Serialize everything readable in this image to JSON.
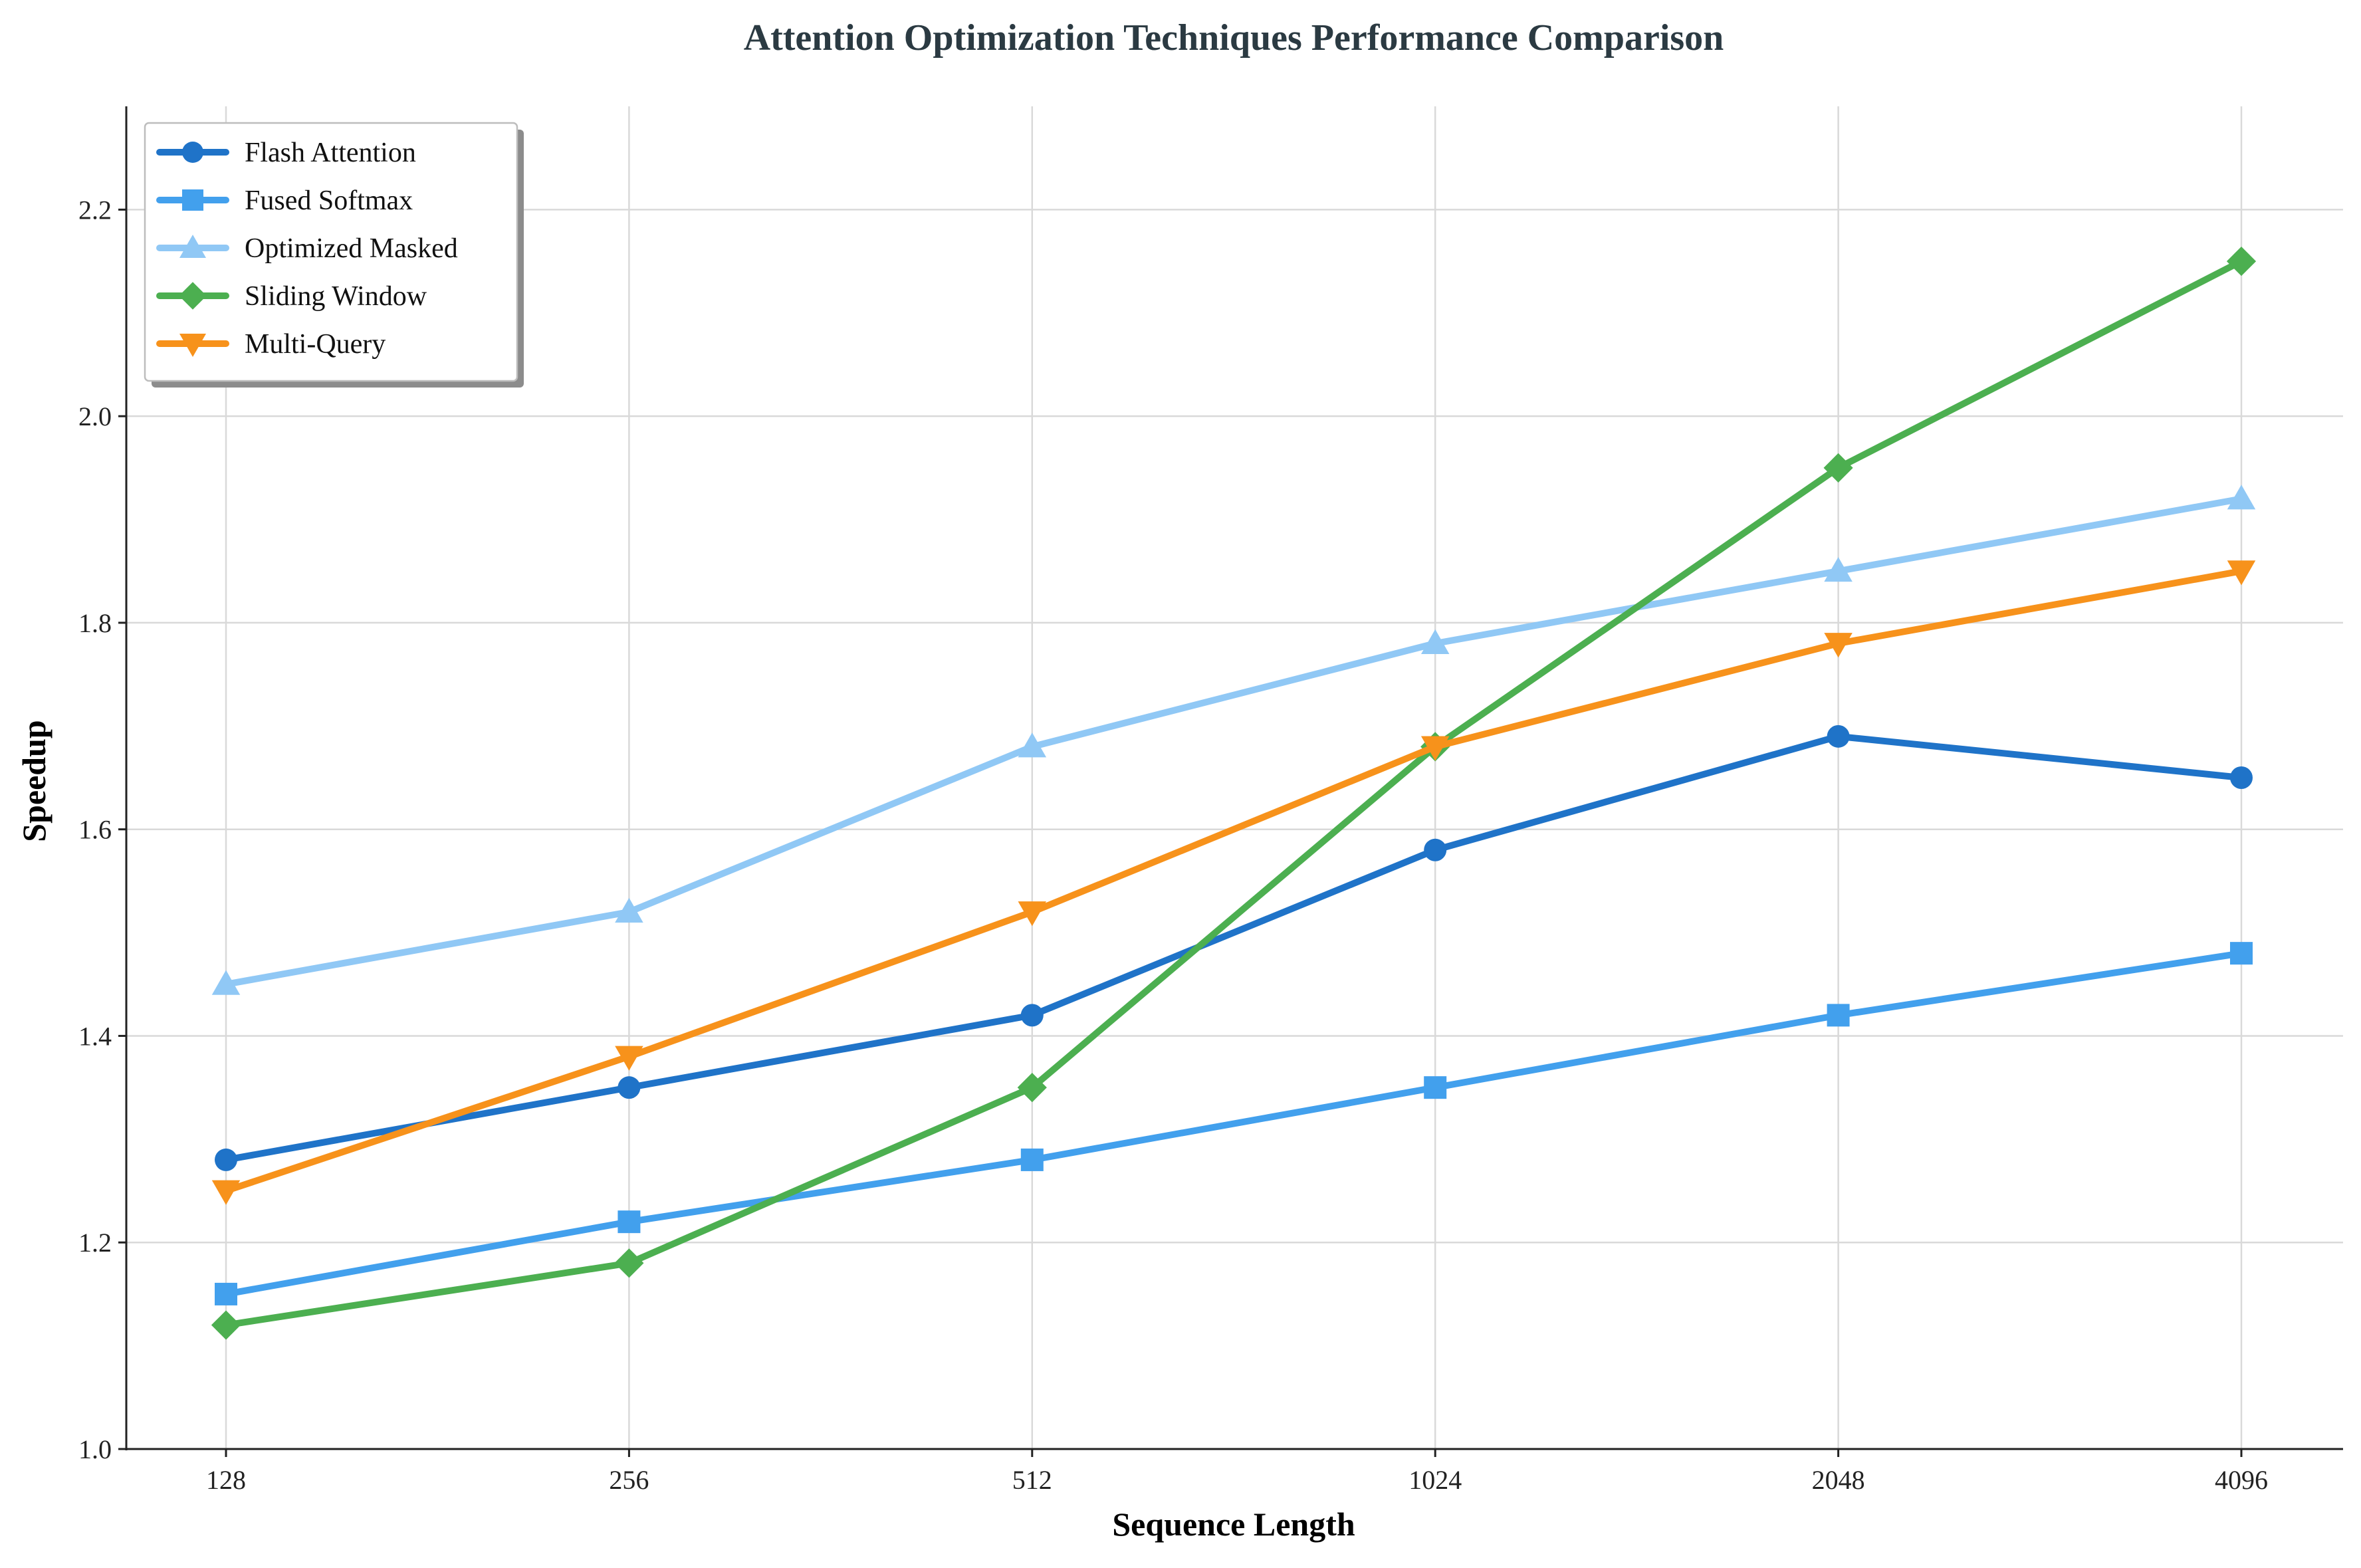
{
  "chart_data": {
    "type": "line",
    "title": "Attention Optimization Techniques Performance Comparison",
    "xlabel": "Sequence Length",
    "ylabel": "Speedup",
    "categories": [
      "128",
      "256",
      "512",
      "1024",
      "2048",
      "4096"
    ],
    "ylim": [
      1.0,
      2.3
    ],
    "yticks": [
      "1.0",
      "1.2",
      "1.4",
      "1.6",
      "1.8",
      "2.0",
      "2.2"
    ],
    "grid": true,
    "legend_position": "top-left",
    "baseline": 1.0,
    "series": [
      {
        "name": "Flash Attention",
        "color": "#1f73c8",
        "marker": "circle",
        "values": [
          1.28,
          1.35,
          1.42,
          1.58,
          1.69,
          1.65
        ]
      },
      {
        "name": "Fused Softmax",
        "color": "#42a0ed",
        "marker": "square",
        "values": [
          1.15,
          1.22,
          1.28,
          1.35,
          1.42,
          1.48
        ]
      },
      {
        "name": "Optimized Masked",
        "color": "#90c8f5",
        "marker": "triangle-up",
        "values": [
          1.45,
          1.52,
          1.68,
          1.78,
          1.85,
          1.92
        ]
      },
      {
        "name": "Sliding Window",
        "color": "#4caf50",
        "marker": "diamond",
        "values": [
          1.12,
          1.18,
          1.35,
          1.68,
          1.95,
          2.15
        ]
      },
      {
        "name": "Multi-Query",
        "color": "#f7921b",
        "marker": "triangle-down",
        "values": [
          1.25,
          1.38,
          1.52,
          1.68,
          1.78,
          1.85
        ]
      }
    ]
  }
}
